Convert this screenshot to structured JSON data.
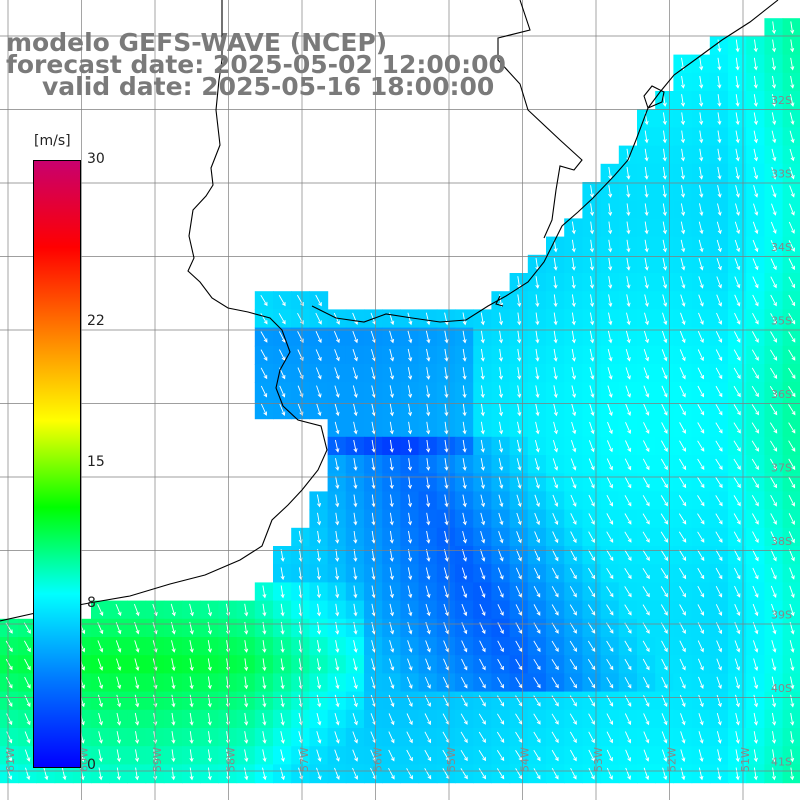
{
  "title": {
    "model": "modelo GEFS-WAVE (NCEP)",
    "forecast": "forecast date: 2025-05-02 12:00:00",
    "valid": "valid date: 2025-05-16 18:00:00"
  },
  "colorbar": {
    "unit": "[m/s]",
    "min": 0,
    "max": 30,
    "ticks": [
      {
        "value": 30,
        "label": "30"
      },
      {
        "value": 22,
        "label": "22"
      },
      {
        "value": 15,
        "label": "15"
      },
      {
        "value": 8,
        "label": "8"
      },
      {
        "value": 0,
        "label": "0"
      }
    ],
    "colors": [
      "#0000ff",
      "#0078ff",
      "#00ffff",
      "#00ff00",
      "#ffff00",
      "#ff8000",
      "#ff0000",
      "#c8006e"
    ]
  },
  "map": {
    "field": "wind speed",
    "land_color": "#ffffff",
    "coastline_color": "#000000",
    "grid_color": "#7f7f7f",
    "lat_labels": [
      "32S",
      "33S",
      "34S",
      "35S",
      "36S",
      "37S",
      "38S",
      "39S",
      "40S",
      "41S"
    ],
    "lon_labels": [
      "61W",
      "60W",
      "59W",
      "58W",
      "57W",
      "56W",
      "55W",
      "54W",
      "53W",
      "52W",
      "51W"
    ]
  }
}
